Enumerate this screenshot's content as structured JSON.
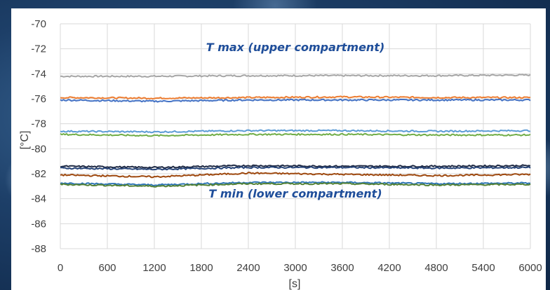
{
  "chart_data": {
    "type": "line",
    "xlabel": "[s]",
    "ylabel": "[°C]",
    "xlim": [
      0,
      6000
    ],
    "ylim": [
      -88,
      -70
    ],
    "x_ticks": [
      "0",
      "600",
      "1200",
      "1800",
      "2400",
      "3000",
      "3600",
      "4200",
      "4800",
      "5400",
      "6000"
    ],
    "y_ticks": [
      "-70",
      "-72",
      "-74",
      "-76",
      "-78",
      "-80",
      "-82",
      "-84",
      "-86",
      "-88"
    ],
    "grid": true,
    "annotations": [
      {
        "text": "T max (upper compartment)",
        "x": 3000,
        "y": -72.2
      },
      {
        "text": "T min (lower compartment)",
        "x": 3000,
        "y": -83.9
      }
    ],
    "series": [
      {
        "color": "#a6a6a6",
        "x": [
          0,
          1200,
          2400,
          3600,
          4800,
          6000
        ],
        "values": [
          -74.2,
          -74.2,
          -74.15,
          -74.15,
          -74.15,
          -74.1
        ]
      },
      {
        "color": "#ed7d31",
        "x": [
          0,
          1200,
          2400,
          3600,
          4800,
          6000
        ],
        "values": [
          -75.9,
          -75.95,
          -75.9,
          -75.85,
          -75.9,
          -75.9
        ]
      },
      {
        "color": "#4472c4",
        "x": [
          0,
          1200,
          2400,
          3600,
          4800,
          6000
        ],
        "values": [
          -76.1,
          -76.2,
          -76.1,
          -76.1,
          -76.1,
          -76.1
        ]
      },
      {
        "color": "#5b9bd5",
        "x": [
          0,
          1200,
          2400,
          3600,
          4800,
          6000
        ],
        "values": [
          -78.6,
          -78.65,
          -78.55,
          -78.55,
          -78.6,
          -78.55
        ]
      },
      {
        "color": "#70ad47",
        "x": [
          0,
          1200,
          2400,
          3600,
          4800,
          6000
        ],
        "values": [
          -78.85,
          -78.95,
          -78.85,
          -78.85,
          -78.9,
          -78.9
        ]
      },
      {
        "color": "#1f2a44",
        "x": [
          0,
          1200,
          2400,
          3600,
          4800,
          6000
        ],
        "values": [
          -81.4,
          -81.5,
          -81.35,
          -81.4,
          -81.4,
          -81.35
        ]
      },
      {
        "color": "#264478",
        "x": [
          0,
          1200,
          2400,
          3600,
          4800,
          6000
        ],
        "values": [
          -81.55,
          -81.65,
          -81.5,
          -81.5,
          -81.55,
          -81.5
        ]
      },
      {
        "color": "#9e480e",
        "x": [
          0,
          1200,
          2400,
          3600,
          4800,
          6000
        ],
        "values": [
          -82.1,
          -82.25,
          -81.95,
          -82.05,
          -82.15,
          -82.05
        ]
      },
      {
        "color": "#2e75b6",
        "x": [
          0,
          1200,
          2400,
          3600,
          4800,
          6000
        ],
        "values": [
          -82.75,
          -82.9,
          -82.7,
          -82.7,
          -82.8,
          -82.75
        ]
      },
      {
        "color": "#548235",
        "x": [
          0,
          1200,
          2400,
          3600,
          4800,
          6000
        ],
        "values": [
          -82.85,
          -83.0,
          -82.8,
          -82.8,
          -82.9,
          -82.85
        ]
      }
    ]
  }
}
